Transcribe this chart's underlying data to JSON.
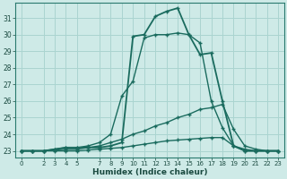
{
  "title": "",
  "xlabel": "Humidex (Indice chaleur)",
  "ylabel": "",
  "background_color": "#ceeae7",
  "grid_color": "#aad4d0",
  "line_color": "#1a6b5e",
  "xlim": [
    -0.5,
    23.5
  ],
  "ylim": [
    22.6,
    31.9
  ],
  "xticks": [
    0,
    2,
    3,
    4,
    5,
    7,
    8,
    9,
    10,
    11,
    12,
    13,
    14,
    15,
    16,
    17,
    18,
    19,
    20,
    21,
    22,
    23
  ],
  "yticks": [
    23,
    24,
    25,
    26,
    27,
    28,
    29,
    30,
    31
  ],
  "lines": [
    {
      "x": [
        0,
        1,
        2,
        3,
        4,
        5,
        6,
        7,
        8,
        9,
        10,
        11,
        12,
        13,
        14,
        15,
        16,
        17,
        18,
        19,
        20,
        21,
        22,
        23
      ],
      "y": [
        23,
        23,
        23,
        23.1,
        23.2,
        23.2,
        23.2,
        23.2,
        23.3,
        23.5,
        29.9,
        30.0,
        31.1,
        31.4,
        31.6,
        30.0,
        28.8,
        28.9,
        26.0,
        23.3,
        23.0,
        23.0,
        23.0,
        23.0
      ],
      "marker": "+",
      "lw": 1.3
    },
    {
      "x": [
        0,
        1,
        2,
        3,
        4,
        5,
        6,
        7,
        8,
        9,
        10,
        11,
        12,
        13,
        14,
        15,
        16,
        17,
        18,
        19,
        20,
        21,
        22,
        23
      ],
      "y": [
        23,
        23,
        23,
        23.1,
        23.2,
        23.2,
        23.3,
        23.5,
        24.0,
        26.3,
        27.2,
        29.8,
        30.0,
        30.0,
        30.1,
        30.0,
        29.5,
        26.0,
        24.4,
        23.3,
        23.1,
        23.0,
        23.0,
        23.0
      ],
      "marker": "+",
      "lw": 1.0
    },
    {
      "x": [
        0,
        1,
        2,
        3,
        4,
        5,
        6,
        7,
        8,
        9,
        10,
        11,
        12,
        13,
        14,
        15,
        16,
        17,
        18,
        19,
        20,
        21,
        22,
        23
      ],
      "y": [
        23,
        23,
        23,
        23.05,
        23.1,
        23.1,
        23.2,
        23.3,
        23.5,
        23.7,
        24.0,
        24.2,
        24.5,
        24.7,
        25.0,
        25.2,
        25.5,
        25.6,
        25.8,
        24.3,
        23.3,
        23.1,
        23.0,
        23.0
      ],
      "marker": "+",
      "lw": 1.0
    },
    {
      "x": [
        0,
        1,
        2,
        3,
        4,
        5,
        6,
        7,
        8,
        9,
        10,
        11,
        12,
        13,
        14,
        15,
        16,
        17,
        18,
        19,
        20,
        21,
        22,
        23
      ],
      "y": [
        23,
        23,
        23,
        23.0,
        23.0,
        23.0,
        23.05,
        23.1,
        23.15,
        23.2,
        23.3,
        23.4,
        23.5,
        23.6,
        23.65,
        23.7,
        23.75,
        23.8,
        23.8,
        23.3,
        23.0,
        23.0,
        23.0,
        23.0
      ],
      "marker": "+",
      "lw": 1.0
    }
  ]
}
